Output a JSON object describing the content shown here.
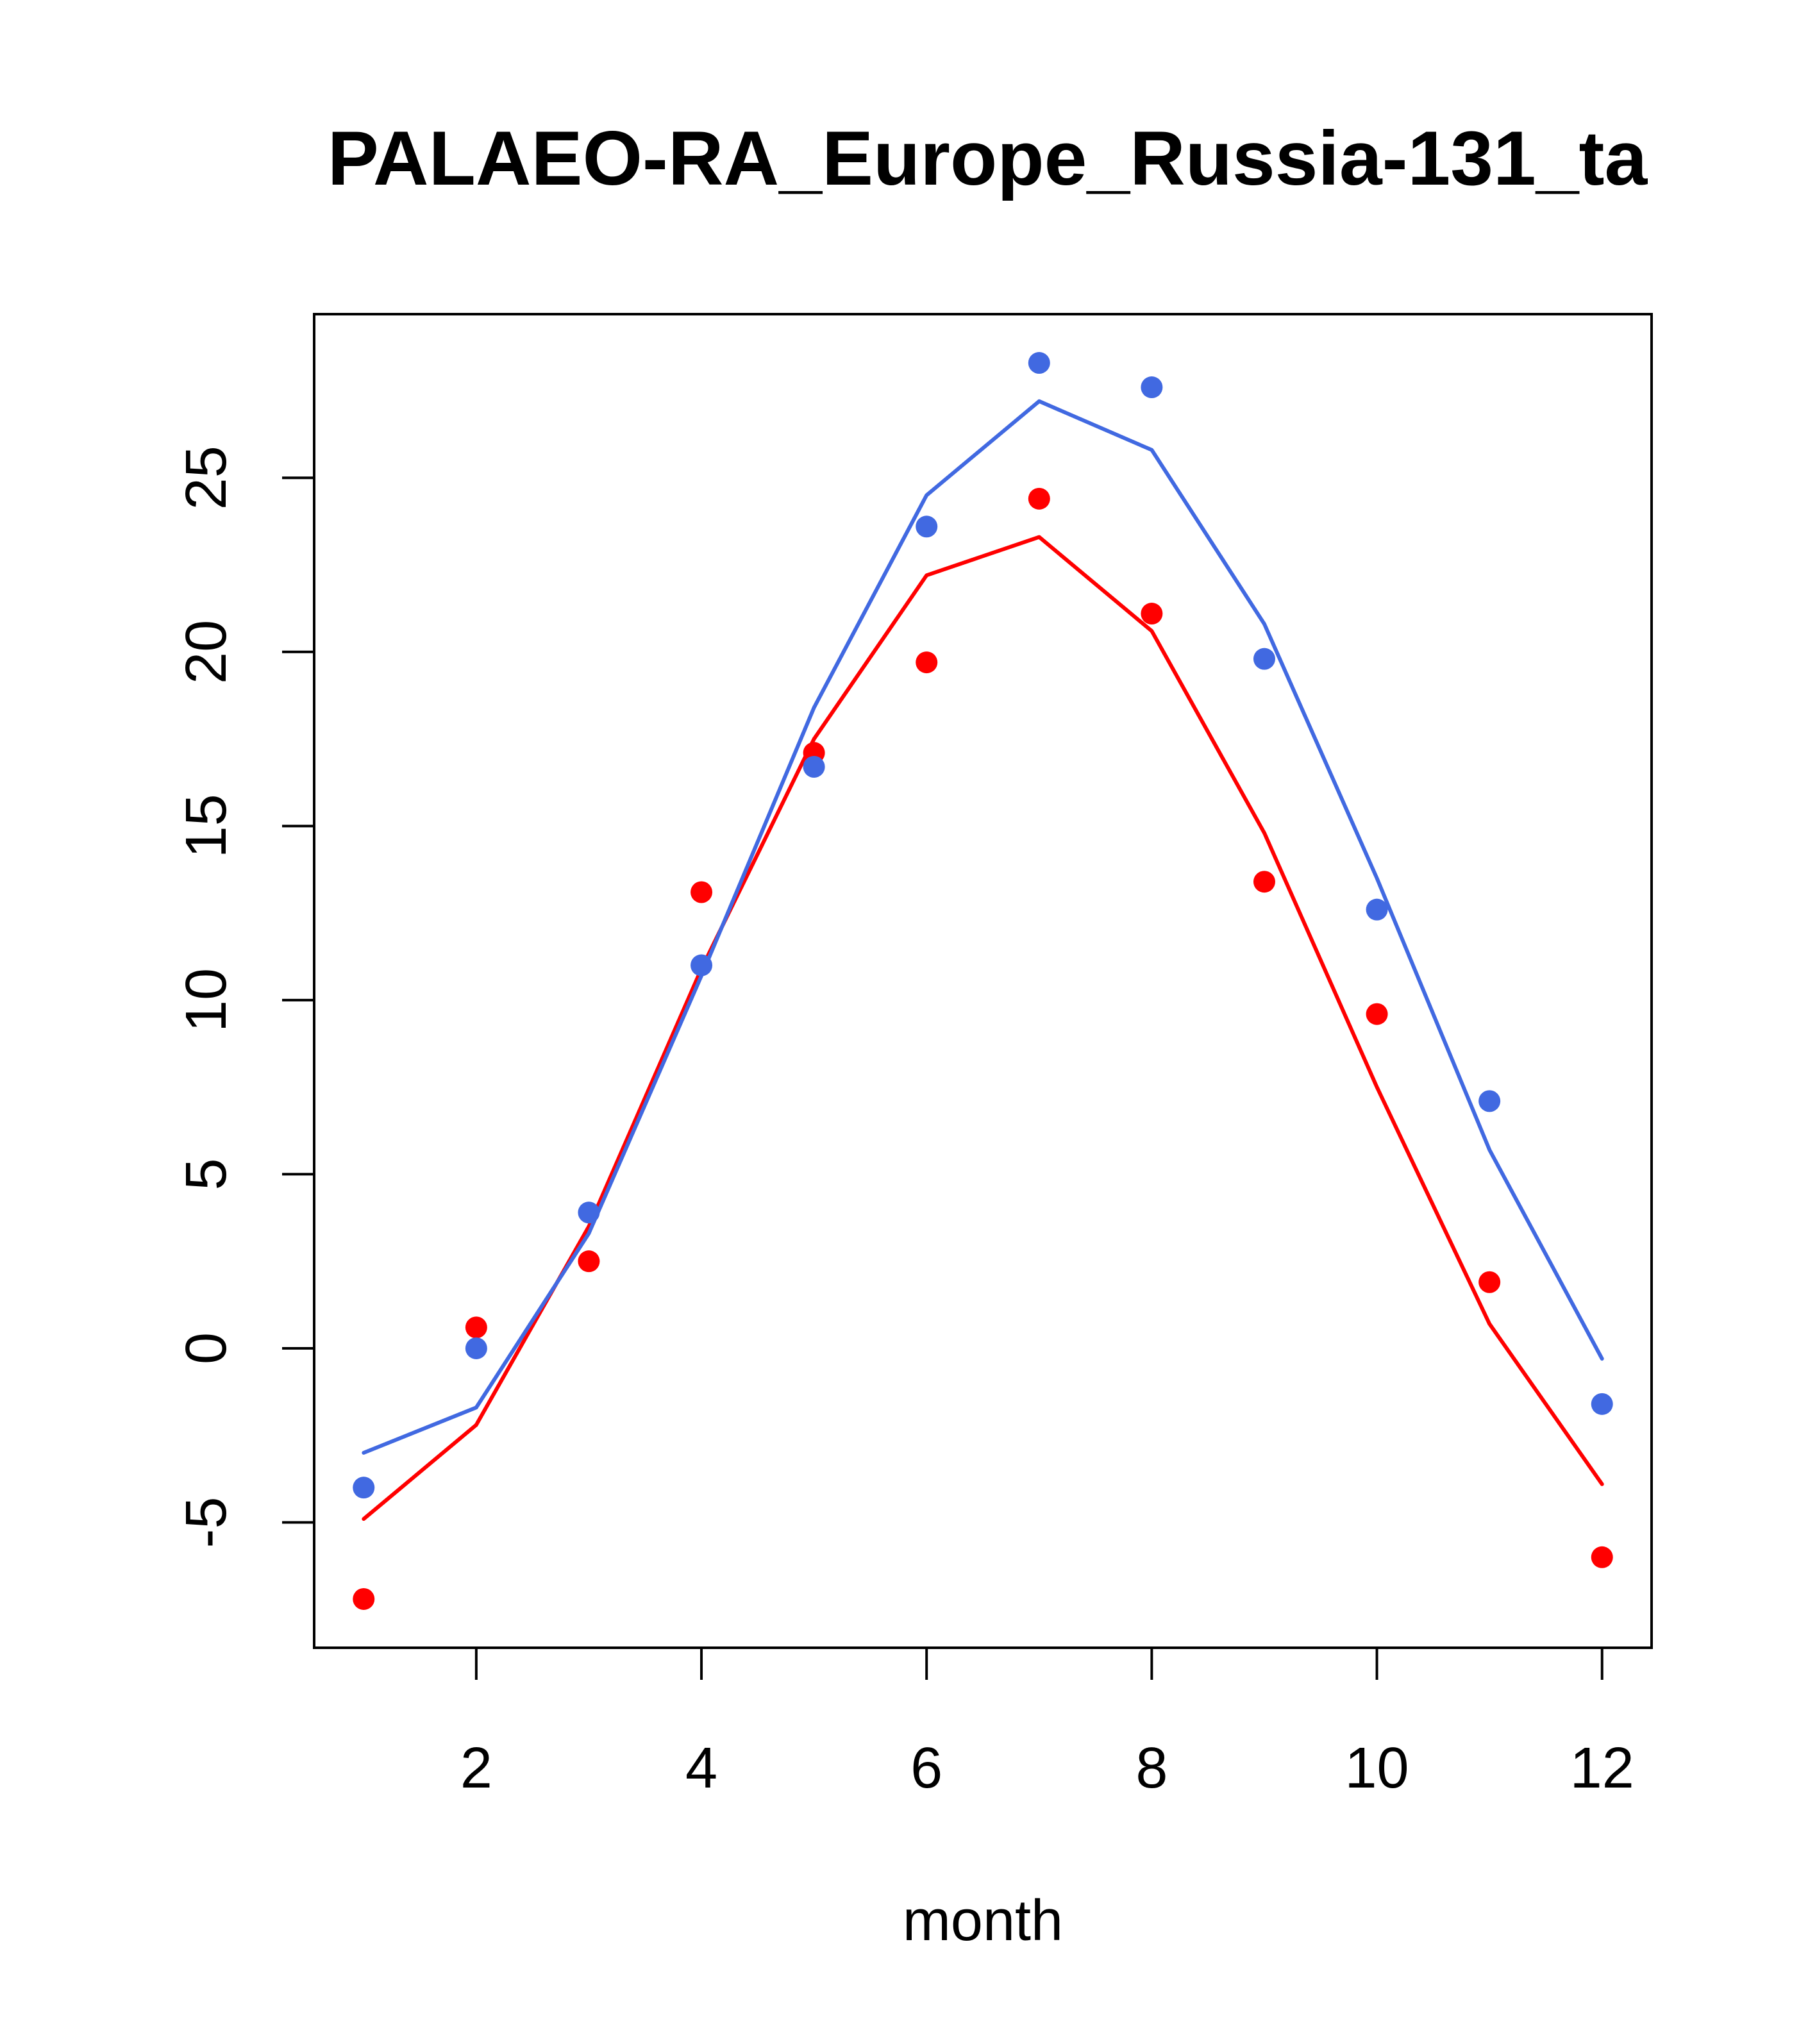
{
  "chart_data": {
    "type": "line",
    "title": "PALAEO-RA_Europe_Russia-131_ta",
    "xlabel": "month",
    "ylabel": "",
    "xlim": [
      0.56,
      12.44
    ],
    "ylim": [
      -8.6,
      29.7
    ],
    "x_ticks": [
      2,
      4,
      6,
      8,
      10,
      12
    ],
    "y_ticks": [
      -5,
      0,
      5,
      10,
      15,
      20,
      25
    ],
    "grid": false,
    "series": [
      {
        "color": "#ff0000",
        "line": [
          -4.9,
          -2.2,
          3.5,
          10.9,
          17.5,
          22.2,
          23.3,
          20.6,
          14.8,
          7.5,
          0.7,
          -3.9
        ],
        "points": [
          -7.2,
          0.6,
          2.5,
          13.1,
          17.1,
          19.7,
          24.4,
          21.1,
          13.4,
          9.6,
          1.9,
          -6.0
        ]
      },
      {
        "color": "#4169e1",
        "line": [
          -3.0,
          -1.7,
          3.3,
          10.7,
          18.4,
          24.5,
          27.2,
          25.8,
          20.8,
          13.5,
          5.7,
          -0.3
        ],
        "points": [
          -4.0,
          0.0,
          3.9,
          11.0,
          16.7,
          23.6,
          28.3,
          27.6,
          19.8,
          12.6,
          7.1,
          -1.6
        ]
      }
    ],
    "x": [
      1,
      2,
      3,
      4,
      5,
      6,
      7,
      8,
      9,
      10,
      11,
      12
    ]
  }
}
